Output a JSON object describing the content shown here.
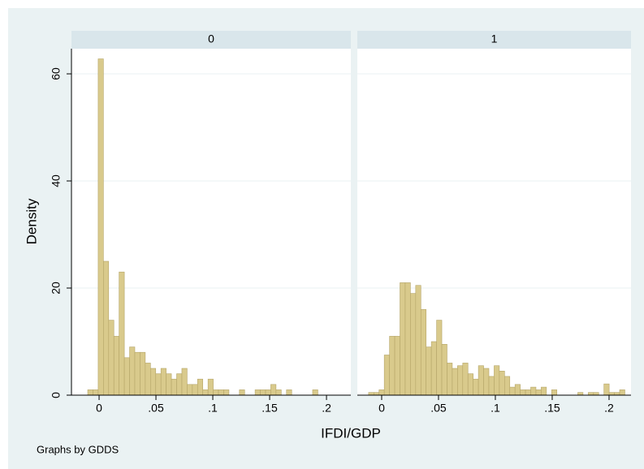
{
  "xlabel": "IFDI/GDP",
  "ylabel": "Density",
  "note": "Graphs by GDDS",
  "chart_data": [
    {
      "type": "histogram",
      "title": "0",
      "color": "#d9ca8c",
      "edge_color": "#b5a568",
      "grid": true,
      "bins": [
        -0.01,
        -0.0054,
        -0.0008,
        0.0038,
        0.0084,
        0.013,
        0.0176,
        0.0222,
        0.0268,
        0.0314,
        0.036,
        0.0406,
        0.0452,
        0.0498,
        0.0544,
        0.059,
        0.0636,
        0.0682,
        0.0728,
        0.0774,
        0.082,
        0.0866,
        0.0912,
        0.0958,
        0.1004,
        0.105,
        0.1096,
        0.1142,
        0.1188,
        0.1234,
        0.128,
        0.1326,
        0.1372,
        0.1418,
        0.1464,
        0.151,
        0.1556,
        0.1602,
        0.1648,
        0.1694,
        0.174,
        0.1786,
        0.1832,
        0.1878,
        0.1924,
        0.197
      ],
      "values": [
        1,
        1,
        62.8,
        25,
        14,
        11,
        23,
        7,
        9,
        8,
        8,
        6,
        5,
        4,
        5,
        4,
        3,
        4,
        5,
        2,
        2,
        3,
        1,
        3,
        1,
        1,
        1,
        0,
        0,
        1,
        0,
        0,
        1,
        1,
        1,
        2,
        1,
        0,
        1,
        0,
        0,
        0,
        0,
        1,
        0
      ],
      "xlim": [
        -0.0243,
        0.2214
      ],
      "ylim": [
        0,
        64.7
      ],
      "xticks": [
        0,
        {
          "value": 0.05,
          "label": ".05"
        },
        {
          "value": 0.1,
          "label": ".1"
        },
        {
          "value": 0.15,
          "label": ".15"
        },
        {
          "value": 0.2,
          "label": ".2"
        }
      ],
      "yticks": [
        0,
        20,
        40,
        60
      ]
    },
    {
      "type": "histogram",
      "title": "1",
      "color": "#d9ca8c",
      "edge_color": "#b5a568",
      "grid": true,
      "bins": [
        -0.0115,
        -0.0069,
        -0.0023,
        0.0023,
        0.0069,
        0.0115,
        0.0161,
        0.0207,
        0.0253,
        0.0299,
        0.0345,
        0.0391,
        0.0437,
        0.0483,
        0.0529,
        0.0575,
        0.0621,
        0.0667,
        0.0713,
        0.0759,
        0.0805,
        0.0851,
        0.0897,
        0.0943,
        0.0989,
        0.1035,
        0.1081,
        0.1127,
        0.1173,
        0.1219,
        0.1265,
        0.1311,
        0.1357,
        0.1403,
        0.1449,
        0.1495,
        0.1541,
        0.1587,
        0.1633,
        0.1679,
        0.1725,
        0.1771,
        0.1817,
        0.1863,
        0.1909,
        0.1955,
        0.2001,
        0.2047,
        0.2093,
        0.2139
      ],
      "values": [
        0.5,
        0.5,
        1,
        7.5,
        11,
        11,
        21,
        21,
        19,
        20.5,
        16,
        9,
        10,
        14,
        9.5,
        6,
        5,
        5.5,
        6,
        4,
        3,
        5.5,
        5,
        3.5,
        5.5,
        4.5,
        3.5,
        1.5,
        2,
        1,
        1,
        1.5,
        1,
        1.5,
        0,
        1,
        0,
        0,
        0,
        0,
        0.5,
        0,
        0.5,
        0.5,
        0,
        2.1,
        0.5,
        0.5,
        1
      ],
      "xlim": [
        -0.0214,
        0.2193
      ],
      "ylim": [
        0,
        64.7
      ],
      "xticks": [
        0,
        {
          "value": 0.05,
          "label": ".05"
        },
        {
          "value": 0.1,
          "label": ".1"
        },
        {
          "value": 0.15,
          "label": ".15"
        },
        {
          "value": 0.2,
          "label": ".2"
        }
      ],
      "yticks": [
        0,
        20,
        40,
        60
      ]
    }
  ]
}
